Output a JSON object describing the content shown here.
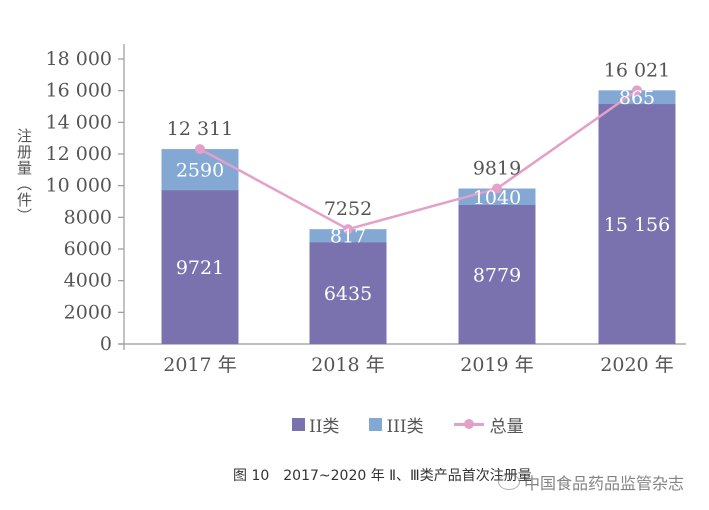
{
  "chart_data": {
    "type": "bar",
    "stacked": true,
    "title": "",
    "xlabel": "",
    "ylabel": "注册量（件）",
    "ylim": [
      0,
      18000
    ],
    "yticks": [
      0,
      2000,
      4000,
      6000,
      8000,
      10000,
      12000,
      14000,
      16000,
      18000
    ],
    "ytick_labels": [
      "0",
      "2000",
      "4000",
      "6000",
      "8000",
      "10 000",
      "12 000",
      "14 000",
      "16 000",
      "18 000"
    ],
    "grid": false,
    "categories": [
      "2017 年",
      "2018 年",
      "2019 年",
      "2020 年"
    ],
    "series": [
      {
        "name": "II类",
        "type": "bar",
        "color": "#7a72ae",
        "values": [
          9721,
          6435,
          8779,
          15156
        ],
        "labels": [
          "9721",
          "6435",
          "8779",
          "15 156"
        ]
      },
      {
        "name": "III类",
        "type": "bar",
        "color": "#84a8d4",
        "values": [
          2590,
          817,
          1040,
          865
        ],
        "labels": [
          "2590",
          "817",
          "1040",
          "865"
        ]
      },
      {
        "name": "总量",
        "type": "line",
        "color": "#e4a0c8",
        "values": [
          12311,
          7252,
          9819,
          16021
        ],
        "labels": [
          "12 311",
          "7252",
          "9819",
          "16 021"
        ]
      }
    ],
    "legend": {
      "position": "bottom",
      "items": [
        "II类",
        "III类",
        "总量"
      ]
    }
  },
  "caption": "图 10　2017~2020 年 Ⅱ、Ⅲ类产品首次注册量",
  "watermark": "中国食品药品监管杂志"
}
